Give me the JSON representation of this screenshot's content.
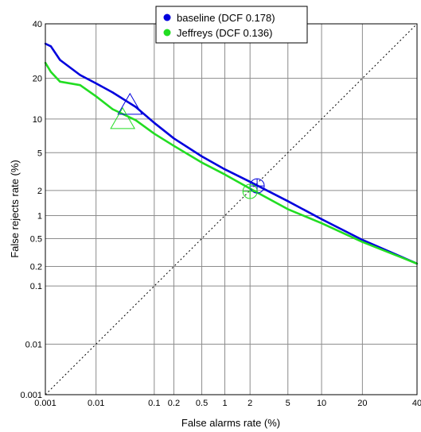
{
  "chart_data": {
    "type": "line",
    "subtype": "DET curve",
    "xlabel": "False alarms rate (%)",
    "ylabel": "False rejects rate (%)",
    "xlim": [
      0.001,
      40
    ],
    "ylim": [
      0.001,
      40
    ],
    "scale": "probit",
    "grid": true,
    "legend_position": "top-center",
    "x_ticks": [
      {
        "value": 0.001,
        "label": "0.001"
      },
      {
        "value": 0.01,
        "label": "0.01"
      },
      {
        "value": 0.1,
        "label": "0.1"
      },
      {
        "value": 0.2,
        "label": "0.2"
      },
      {
        "value": 0.5,
        "label": "0.5"
      },
      {
        "value": 1,
        "label": "1"
      },
      {
        "value": 2,
        "label": "2"
      },
      {
        "value": 5,
        "label": "5"
      },
      {
        "value": 10,
        "label": "10"
      },
      {
        "value": 20,
        "label": "20"
      },
      {
        "value": 40,
        "label": "40"
      }
    ],
    "y_ticks": [
      {
        "value": 0.001,
        "label": "0.001"
      },
      {
        "value": 0.01,
        "label": "0.01"
      },
      {
        "value": 0.1,
        "label": "0.1"
      },
      {
        "value": 0.2,
        "label": "0.2"
      },
      {
        "value": 0.5,
        "label": "0.5"
      },
      {
        "value": 1,
        "label": "1"
      },
      {
        "value": 2,
        "label": "2"
      },
      {
        "value": 5,
        "label": "5"
      },
      {
        "value": 10,
        "label": "10"
      },
      {
        "value": 20,
        "label": "20"
      },
      {
        "value": 40,
        "label": "40"
      }
    ],
    "series": [
      {
        "name": "baseline (DCF 0.178)",
        "color": "#0000dd",
        "points": [
          [
            0.001,
            32
          ],
          [
            0.0013,
            31
          ],
          [
            0.002,
            26
          ],
          [
            0.005,
            21
          ],
          [
            0.01,
            18.5
          ],
          [
            0.02,
            16
          ],
          [
            0.05,
            12.5
          ],
          [
            0.1,
            9.3
          ],
          [
            0.2,
            6.8
          ],
          [
            0.5,
            4.6
          ],
          [
            1,
            3.4
          ],
          [
            2,
            2.5
          ],
          [
            5,
            1.5
          ],
          [
            10,
            0.9
          ],
          [
            20,
            0.48
          ],
          [
            40,
            0.22
          ]
        ],
        "min_dcf_point": [
          2.4,
          2.25
        ],
        "min_dcf_marker": "triangle",
        "min_dcf_marker_at": [
          0.04,
          13
        ]
      },
      {
        "name": "Jeffreys (DCF 0.136)",
        "color": "#22dd22",
        "points": [
          [
            0.001,
            25
          ],
          [
            0.0013,
            22
          ],
          [
            0.002,
            19
          ],
          [
            0.005,
            18
          ],
          [
            0.01,
            15
          ],
          [
            0.02,
            12
          ],
          [
            0.05,
            9.8
          ],
          [
            0.1,
            7.5
          ],
          [
            0.2,
            5.8
          ],
          [
            0.5,
            4
          ],
          [
            1,
            3
          ],
          [
            2,
            2.1
          ],
          [
            5,
            1.2
          ],
          [
            10,
            0.8
          ],
          [
            20,
            0.45
          ],
          [
            40,
            0.22
          ]
        ],
        "min_dcf_point": [
          2,
          1.95
        ],
        "min_dcf_marker": "triangle",
        "min_dcf_marker_at": [
          0.03,
          10
        ]
      }
    ],
    "diagonal": {
      "style": "dotted",
      "color": "#000000"
    }
  }
}
